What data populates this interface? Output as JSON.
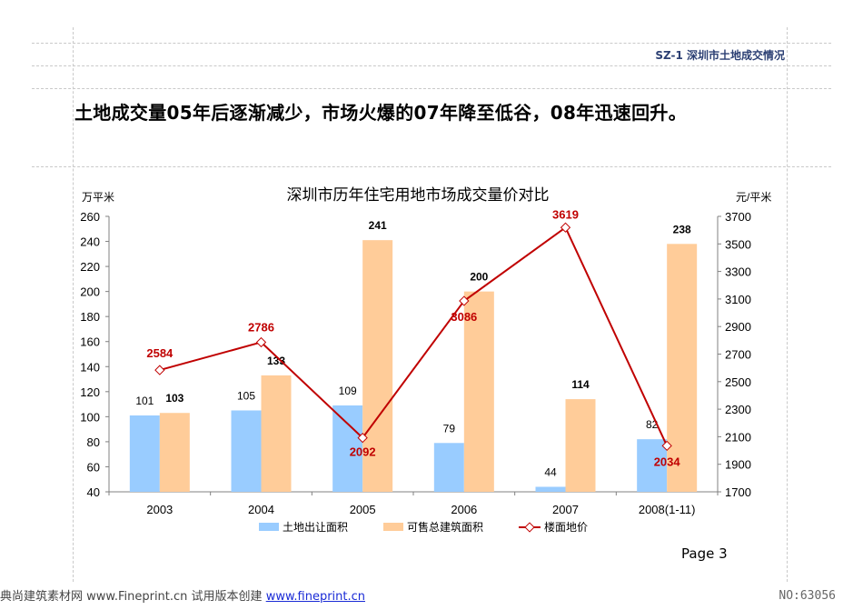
{
  "header": {
    "section_tag": "SZ-1  深圳市土地成交情况"
  },
  "headline": "土地成交量05年后逐渐减少，市场火爆的07年降至低谷，08年迅速回升。",
  "page_number": "Page 3",
  "footer": {
    "left_text": "典尚建筑素材网 www.Fineprint.cn 试用版本创建",
    "link": "www.fineprint.cn",
    "image_id": "NO:63056"
  },
  "colors": {
    "land_area": "#99ccff",
    "floor_area": "#ffcc99",
    "floor_price": "#c00000"
  },
  "chart_data": {
    "type": "bar",
    "title": "深圳市历年住宅用地市场成交量价对比",
    "ylabel": "万平米",
    "y2label": "元/平米",
    "categories": [
      "2003",
      "2004",
      "2005",
      "2006",
      "2007",
      "2008(1-11)"
    ],
    "ylim": [
      40,
      260
    ],
    "yticks": [
      40,
      60,
      80,
      100,
      120,
      140,
      160,
      180,
      200,
      220,
      240,
      260
    ],
    "y2lim": [
      1700,
      3700
    ],
    "y2ticks": [
      1700,
      1900,
      2100,
      2300,
      2500,
      2700,
      2900,
      3100,
      3300,
      3500,
      3700
    ],
    "series": [
      {
        "name": "土地出让面积",
        "type": "bar",
        "axis": "left",
        "values": [
          101,
          105,
          109,
          79,
          44,
          82
        ]
      },
      {
        "name": "可售总建筑面积",
        "type": "bar",
        "axis": "left",
        "values": [
          103,
          133,
          241,
          200,
          114,
          238
        ]
      },
      {
        "name": "楼面地价",
        "type": "line",
        "axis": "right",
        "values": [
          2584,
          2786,
          2092,
          3086,
          3619,
          2034
        ]
      }
    ],
    "grid": false,
    "legend_position": "bottom"
  }
}
